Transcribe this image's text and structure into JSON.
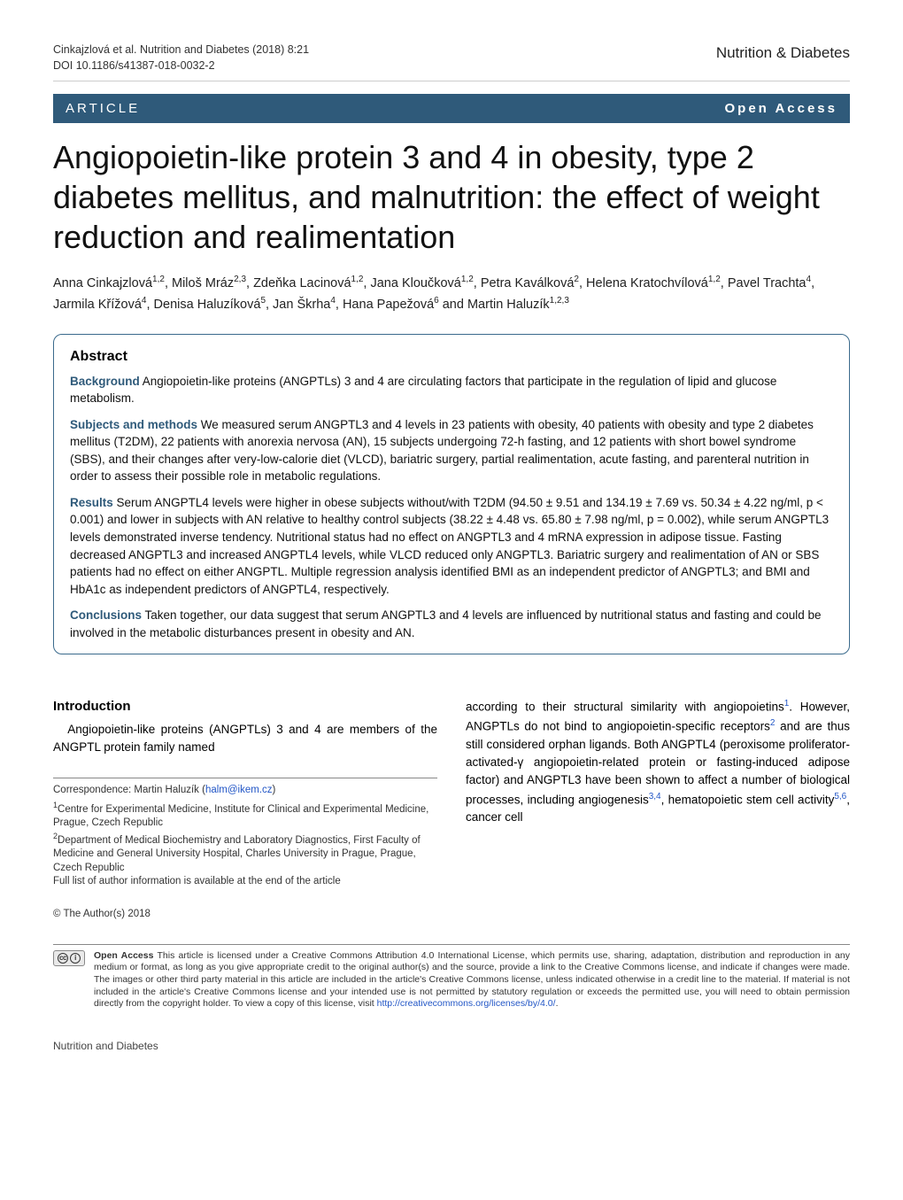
{
  "journal": {
    "name": "Nutrition & Diabetes",
    "footer_text": "Nutrition and Diabetes"
  },
  "header": {
    "citation": "Cinkajzlová et al. Nutrition and Diabetes (2018) 8:21",
    "doi": "DOI 10.1186/s41387-018-0032-2"
  },
  "article_bar": {
    "left": "ARTICLE",
    "right": "Open Access"
  },
  "title": "Angiopoietin-like protein 3 and 4 in obesity, type 2 diabetes mellitus, and malnutrition: the effect of weight reduction and realimentation",
  "authors_html": "Anna Cinkajzlová<sup>1,2</sup>, Miloš Mráz<sup>2,3</sup>, Zdeňka Lacinová<sup>1,2</sup>, Jana Kloučková<sup>1,2</sup>, Petra Kaválková<sup>2</sup>, Helena Kratochvílová<sup>1,2</sup>, Pavel Trachta<sup>4</sup>, Jarmila Křížová<sup>4</sup>, Denisa Haluzíková<sup>5</sup>, Jan Škrha<sup>4</sup>, Hana Papežová<sup>6</sup> and Martin Haluzík<sup>1,2,3</sup>",
  "abstract": {
    "heading": "Abstract",
    "background_label": "Background",
    "background": "Angiopoietin-like proteins (ANGPTLs) 3 and 4 are circulating factors that participate in the regulation of lipid and glucose metabolism.",
    "subjects_label": "Subjects and methods",
    "subjects": "We measured serum ANGPTL3 and 4 levels in 23 patients with obesity, 40 patients with obesity and type 2 diabetes mellitus (T2DM), 22 patients with anorexia nervosa (AN), 15 subjects undergoing 72-h fasting, and 12 patients with short bowel syndrome (SBS), and their changes after very-low-calorie diet (VLCD), bariatric surgery, partial realimentation, acute fasting, and parenteral nutrition in order to assess their possible role in metabolic regulations.",
    "results_label": "Results",
    "results": "Serum ANGPTL4 levels were higher in obese subjects without/with T2DM (94.50 ± 9.51 and 134.19 ± 7.69 vs. 50.34 ± 4.22 ng/ml, p < 0.001) and lower in subjects with AN relative to healthy control subjects (38.22 ± 4.48 vs. 65.80 ± 7.98 ng/ml, p = 0.002), while serum ANGPTL3 levels demonstrated inverse tendency. Nutritional status had no effect on ANGPTL3 and 4 mRNA expression in adipose tissue. Fasting decreased ANGPTL3 and increased ANGPTL4 levels, while VLCD reduced only ANGPTL3. Bariatric surgery and realimentation of AN or SBS patients had no effect on either ANGPTL. Multiple regression analysis identified BMI as an independent predictor of ANGPTL3; and BMI and HbA1c as independent predictors of ANGPTL4, respectively.",
    "conclusions_label": "Conclusions",
    "conclusions": "Taken together, our data suggest that serum ANGPTL3 and 4 levels are influenced by nutritional status and fasting and could be involved in the metabolic disturbances present in obesity and AN."
  },
  "intro": {
    "heading": "Introduction",
    "left_para": "Angiopoietin-like proteins (ANGPTLs) 3 and 4 are members of the ANGPTL protein family named",
    "right_para_html": "according to their structural similarity with angiopoietins<span class=\"ref-sup\">1</span>. However, ANGPTLs do not bind to angiopoietin-specific receptors<span class=\"ref-sup\">2</span> and are thus still considered orphan ligands. Both ANGPTL4 (peroxisome proliferator-activated-γ angiopoietin-related protein or fasting-induced adipose factor) and ANGPTL3 have been shown to affect a number of biological processes, including angiogenesis<span class=\"ref-sup\">3,4</span>, hematopoietic stem cell activity<span class=\"ref-sup\">5,6</span>, cancer cell"
  },
  "affiliations": {
    "correspondence": "Correspondence: Martin Haluzík (",
    "email": "halm@ikem.cz",
    "correspondence_close": ")",
    "aff1": "Centre for Experimental Medicine, Institute for Clinical and Experimental Medicine, Prague, Czech Republic",
    "aff2": "Department of Medical Biochemistry and Laboratory Diagnostics, First Faculty of Medicine and General University Hospital, Charles University in Prague, Prague, Czech Republic",
    "full_list": "Full list of author information is available at the end of the article"
  },
  "license": {
    "copyright": "© The Author(s) 2018",
    "cc_label_cc": "cc",
    "cc_label_by": "i",
    "oa_label": "Open Access",
    "text": "This article is licensed under a Creative Commons Attribution 4.0 International License, which permits use, sharing, adaptation, distribution and reproduction in any medium or format, as long as you give appropriate credit to the original author(s) and the source, provide a link to the Creative Commons license, and indicate if changes were made. The images or other third party material in this article are included in the article's Creative Commons license, unless indicated otherwise in a credit line to the material. If material is not included in the article's Creative Commons license and your intended use is not permitted by statutory regulation or exceeds the permitted use, you will need to obtain permission directly from the copyright holder. To view a copy of this license, visit ",
    "link": "http://creativecommons.org/licenses/by/4.0/"
  },
  "colors": {
    "accent": "#2f5a7a",
    "link": "#2256c6",
    "rule": "#888888",
    "text": "#000000"
  }
}
